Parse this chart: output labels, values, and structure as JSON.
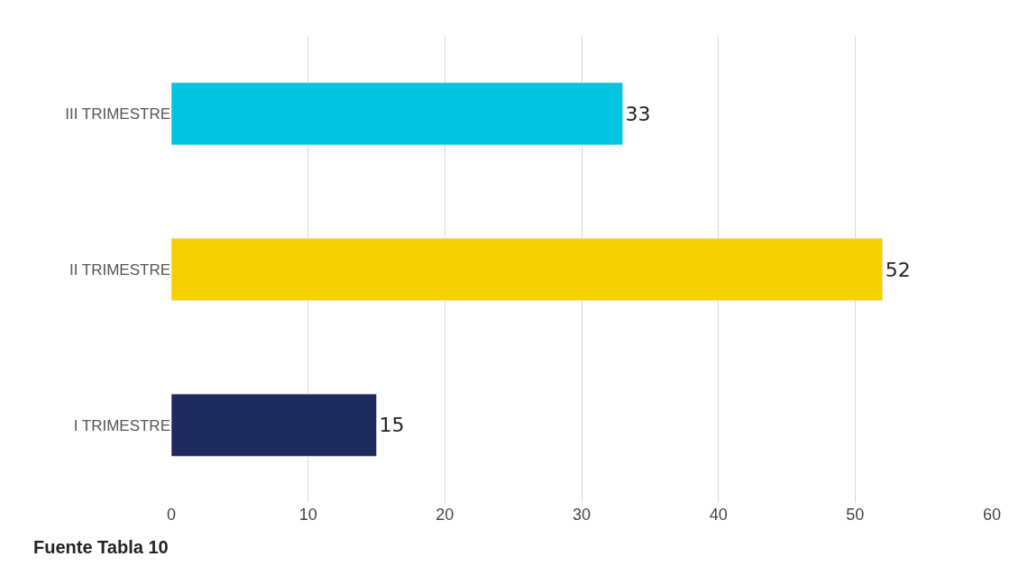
{
  "chart_data": {
    "type": "bar",
    "orientation": "horizontal",
    "categories": [
      "III TRIMESTRE",
      "II TRIMESTRE",
      "I TRIMESTRE"
    ],
    "values": [
      33,
      52,
      15
    ],
    "colors": [
      "#00c4e0",
      "#f7d000",
      "#1f2a5c"
    ],
    "xlim": [
      0,
      60
    ],
    "xticks": [
      0,
      10,
      20,
      30,
      40,
      50,
      60
    ],
    "grid": "x",
    "data_labels": true,
    "annotations": [
      "Fuente Tabla 10"
    ]
  }
}
